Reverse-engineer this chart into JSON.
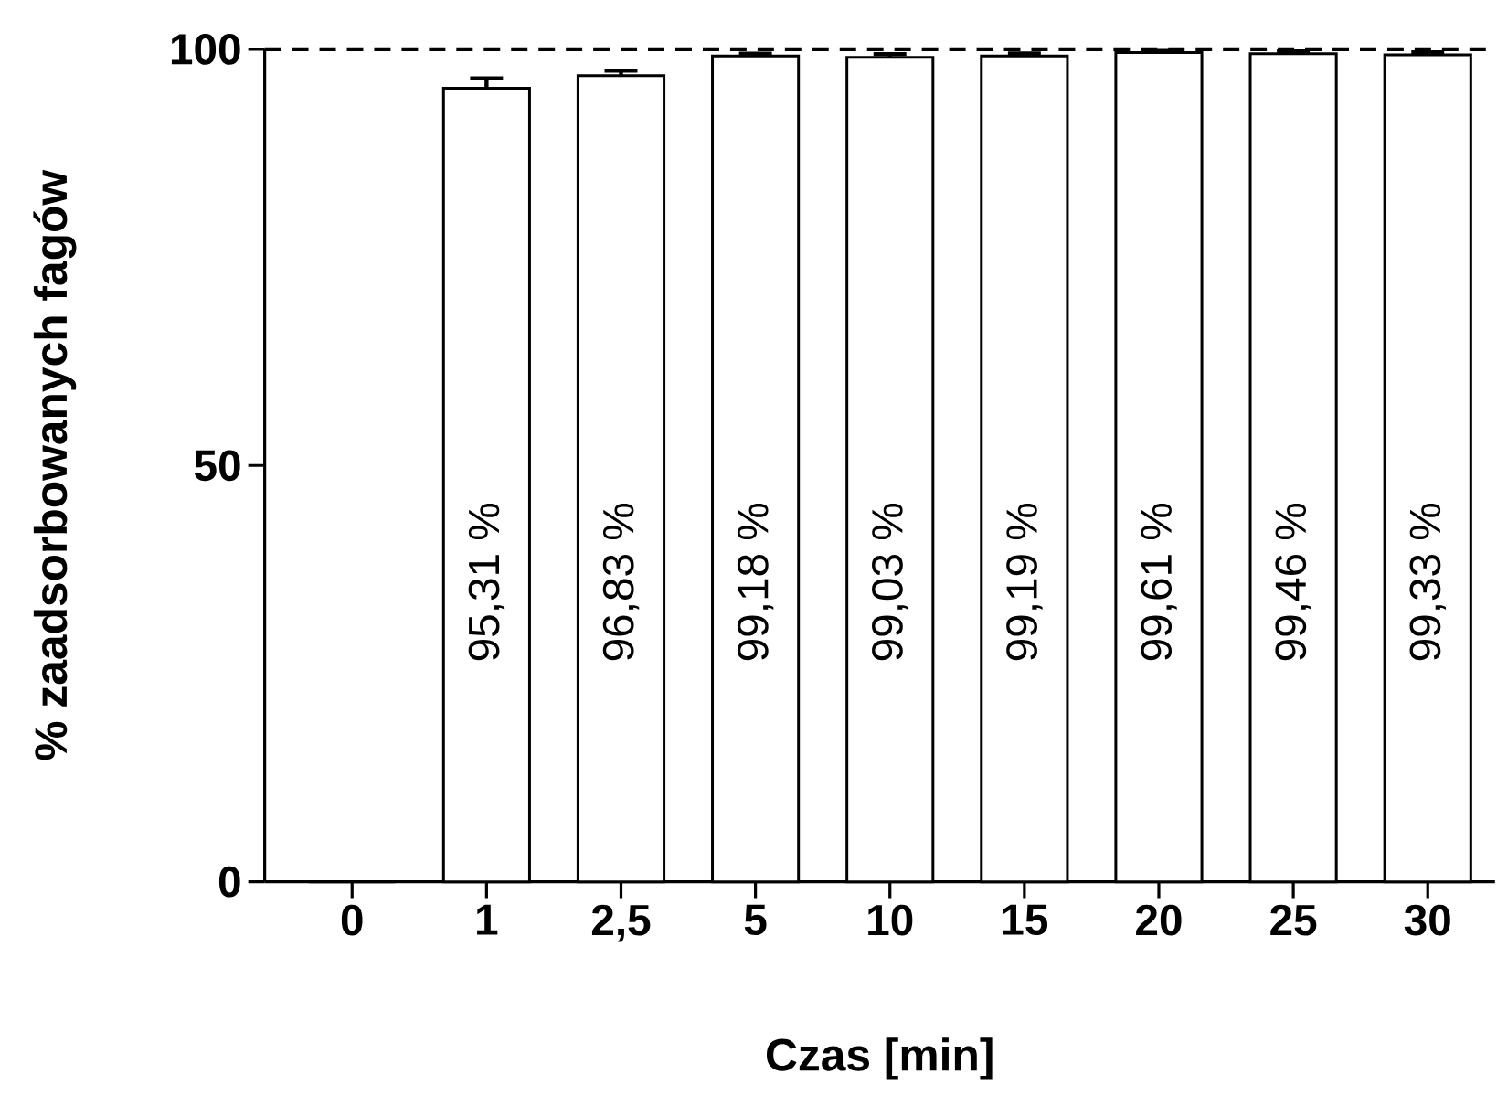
{
  "chart_data": {
    "type": "bar",
    "xlabel": "Czas [min]",
    "ylabel": "% zaadsorbowanych fagów",
    "categories": [
      "0",
      "1",
      "2,5",
      "5",
      "10",
      "15",
      "20",
      "25",
      "30"
    ],
    "values": [
      0,
      95.31,
      96.83,
      99.18,
      99.03,
      99.19,
      99.61,
      99.46,
      99.33
    ],
    "errors": [
      null,
      1.2,
      0.6,
      0.3,
      0.4,
      0.3,
      0.2,
      0.3,
      0.3
    ],
    "value_labels": [
      null,
      "95,31 %",
      "96,83 %",
      "99,18 %",
      "99,03 %",
      "99,19 %",
      "99,61 %",
      "99,46 %",
      "99,33 %"
    ],
    "color": "#ffffff",
    "ylim": [
      0,
      100
    ],
    "yticks": [
      0,
      50,
      100
    ],
    "ref_lines": [
      {
        "axis": "y",
        "value": 100,
        "line_style": "dashed",
        "color": "#000000"
      }
    ],
    "grid": false
  }
}
